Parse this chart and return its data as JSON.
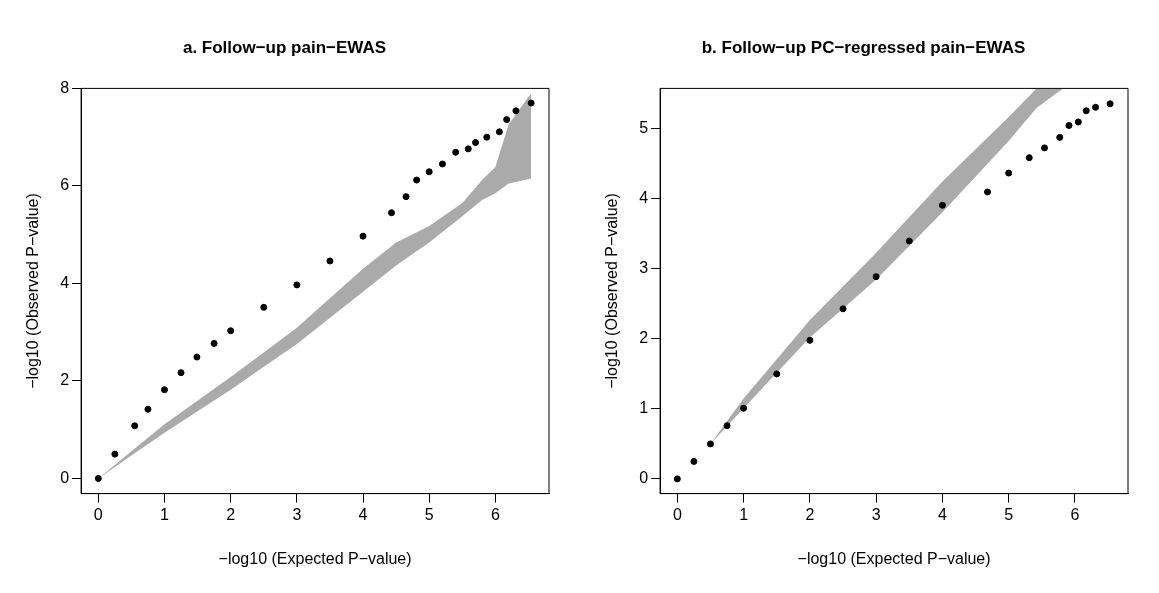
{
  "chart_data": [
    {
      "type": "scatter",
      "title": "a. Follow−up pain−EWAS",
      "xlabel": "−log10 (Expected P−value)",
      "ylabel": "−log10 (Observed P−value)",
      "xlim": [
        -0.26,
        6.81
      ],
      "xticks": [
        0,
        1,
        2,
        3,
        4,
        5,
        6
      ],
      "ylim": [
        -0.31,
        8
      ],
      "yticks": [
        0,
        2,
        4,
        6,
        8
      ],
      "grid": false,
      "legend": false,
      "marker": "circle",
      "series": [
        {
          "type": "line",
          "color": "#aaaaaa",
          "x": [
            0,
            0.5,
            1,
            2,
            3,
            4,
            4.5,
            5,
            5.5,
            5.8,
            6,
            6.2,
            6.54
          ],
          "values": [
            null,
            null,
            null,
            null,
            null,
            null,
            null,
            null,
            null,
            null,
            null,
            null,
            null
          ],
          "lower": [
            0,
            0.47,
            0.94,
            1.82,
            2.76,
            3.83,
            4.37,
            4.84,
            5.38,
            5.71,
            5.85,
            6.05,
            6.15
          ],
          "upper": [
            0,
            0.56,
            1.11,
            2.08,
            3.09,
            4.3,
            4.84,
            5.18,
            5.65,
            6.12,
            6.39,
            7.26,
            7.9
          ]
        },
        {
          "type": "scatter",
          "color": "#000000",
          "x": [
            0,
            0.25,
            0.55,
            0.75,
            1,
            1.25,
            1.49,
            1.75,
            2,
            2.5,
            3,
            3.5,
            4,
            4.43,
            4.65,
            4.81,
            5,
            5.2,
            5.4,
            5.59,
            5.7,
            5.87,
            6.06,
            6.17,
            6.31,
            6.54
          ],
          "values": [
            0,
            0.5,
            1.08,
            1.42,
            1.82,
            2.17,
            2.49,
            2.77,
            3.03,
            3.51,
            3.97,
            4.46,
            4.97,
            5.45,
            5.78,
            6.12,
            6.29,
            6.45,
            6.69,
            6.76,
            6.89,
            7,
            7.11,
            7.36,
            7.54,
            7.7
          ]
        }
      ]
    },
    {
      "type": "scatter",
      "title": "b. Follow−up PC−regressed pain−EWAS",
      "xlabel": "−log10 (Expected P−value)",
      "ylabel": "−log10 (Observed P−value)",
      "xlim": [
        -0.26,
        6.8
      ],
      "xticks": [
        0,
        1,
        2,
        3,
        4,
        5,
        6
      ],
      "ylim": [
        -0.21,
        5.58
      ],
      "yticks": [
        0,
        1,
        2,
        3,
        4,
        5
      ],
      "grid": false,
      "legend": false,
      "marker": "circle",
      "series": [
        {
          "type": "line",
          "color": "#aaaaaa",
          "x": [
            0.5,
            1,
            2,
            3,
            4,
            5,
            5.42,
            5.82
          ],
          "values": [
            null,
            null,
            null,
            null,
            null,
            null,
            null,
            null
          ],
          "lower": [
            0.5,
            1.01,
            2.02,
            2.85,
            3.81,
            4.83,
            5.3,
            5.58
          ],
          "upper": [
            0.5,
            1.15,
            2.27,
            3.23,
            4.25,
            5.17,
            5.58,
            5.58
          ]
        },
        {
          "type": "scatter",
          "color": "#000000",
          "x": [
            0,
            0.25,
            0.5,
            0.75,
            1,
            1.5,
            2,
            2.5,
            3,
            3.5,
            4,
            4.68,
            5,
            5.31,
            5.54,
            5.77,
            5.91,
            6.05,
            6.17,
            6.31,
            6.53
          ],
          "values": [
            0,
            0.25,
            0.5,
            0.76,
            1.01,
            1.5,
            1.98,
            2.43,
            2.89,
            3.4,
            3.91,
            4.1,
            4.37,
            4.59,
            4.73,
            4.88,
            5.05,
            5.1,
            5.26,
            5.31,
            5.36
          ]
        }
      ]
    }
  ]
}
